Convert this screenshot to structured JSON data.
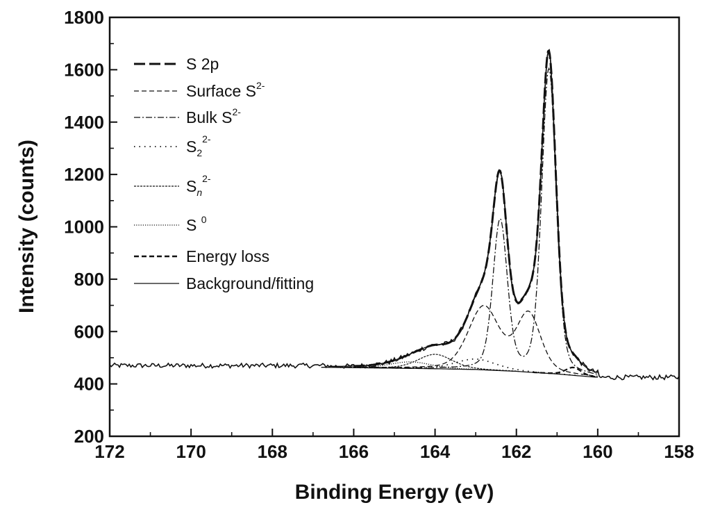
{
  "chart_data": {
    "type": "line",
    "xlabel": "Binding Energy (eV)",
    "ylabel": "Intensity (counts)",
    "xlim": [
      172,
      158
    ],
    "ylim": [
      200,
      1800
    ],
    "x_reversed": true,
    "x_ticks": [
      "172",
      "170",
      "168",
      "166",
      "164",
      "162",
      "160",
      "158"
    ],
    "y_ticks": [
      "200",
      "400",
      "600",
      "800",
      "1000",
      "1200",
      "1400",
      "1600",
      "1800"
    ],
    "grid": false,
    "legend_position": "top-left",
    "legend": {
      "s2p": "S 2p",
      "surface": {
        "base": "Surface S",
        "sup": "2-"
      },
      "bulk": {
        "base": "Bulk S",
        "sup": "2-"
      },
      "s2": {
        "base": "S",
        "sub": "2",
        "sup": "2-"
      },
      "sn": {
        "base": "S",
        "sub": "n",
        "sup": "2-"
      },
      "s0": {
        "base": "S ",
        "sup": "0"
      },
      "energy_loss": "Energy loss",
      "background": "Background/fitting"
    },
    "background_curve": {
      "x": [
        172,
        168,
        166,
        164,
        163,
        162,
        161,
        160,
        158
      ],
      "y": [
        470,
        466,
        462,
        458,
        455,
        448,
        438,
        425,
        420
      ]
    },
    "peaks": {
      "bulk_1": {
        "center": 161.2,
        "height": 1160,
        "fwhm": 0.42
      },
      "bulk_2": {
        "center": 162.4,
        "height": 570,
        "fwhm": 0.42
      },
      "surface_1": {
        "center": 161.7,
        "height": 220,
        "fwhm": 0.7
      },
      "surface_2": {
        "center": 162.8,
        "height": 240,
        "fwhm": 0.9
      },
      "s2_2minus": {
        "center": 163.0,
        "height": 40,
        "fwhm": 1.2
      },
      "sn_2minus": {
        "center": 164.0,
        "height": 55,
        "fwhm": 1.0
      },
      "s0": {
        "center": 164.6,
        "height": 25,
        "fwhm": 1.2
      },
      "energy_loss": {
        "center": 160.6,
        "height": 30,
        "fwhm": 0.45
      }
    },
    "flat_baseline_left": 470,
    "flat_baseline_right": 425
  }
}
